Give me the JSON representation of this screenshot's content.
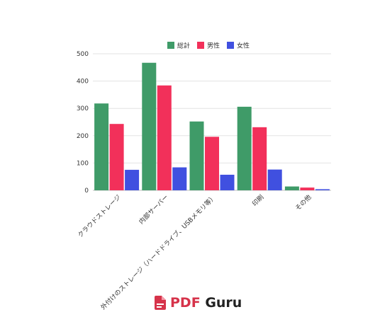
{
  "chart_data": {
    "type": "bar",
    "categories": [
      "クラウドストレージ",
      "内部サーバー",
      "外付けのストレージ（ハードドライブ、USBメモリ等）",
      "印刷",
      "その他"
    ],
    "series": [
      {
        "name": "総計",
        "color": "#3f9b68",
        "values": [
          318,
          467,
          252,
          306,
          14
        ]
      },
      {
        "name": "男性",
        "color": "#f2305a",
        "values": [
          243,
          384,
          196,
          231,
          10
        ]
      },
      {
        "name": "女性",
        "color": "#4050e0",
        "values": [
          75,
          84,
          57,
          76,
          4
        ]
      }
    ],
    "ylim": [
      0,
      500
    ],
    "yticks": [
      0,
      100,
      200,
      300,
      400,
      500
    ],
    "grid": true,
    "legend": "top-center"
  },
  "brand": {
    "pdf": "PDF",
    "guru": "Guru",
    "accent": "#d6334a"
  }
}
